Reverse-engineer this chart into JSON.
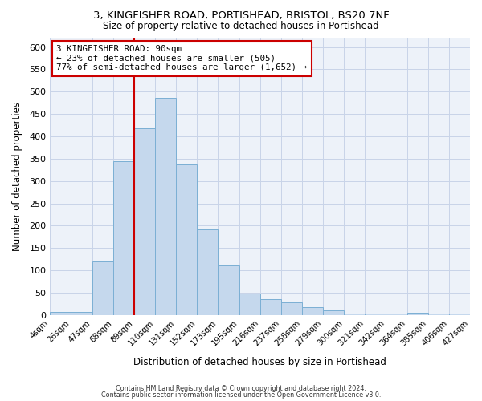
{
  "title1": "3, KINGFISHER ROAD, PORTISHEAD, BRISTOL, BS20 7NF",
  "title2": "Size of property relative to detached houses in Portishead",
  "xlabel": "Distribution of detached houses by size in Portishead",
  "ylabel": "Number of detached properties",
  "bin_labels": [
    "4sqm",
    "26sqm",
    "47sqm",
    "68sqm",
    "89sqm",
    "110sqm",
    "131sqm",
    "152sqm",
    "173sqm",
    "195sqm",
    "216sqm",
    "237sqm",
    "258sqm",
    "279sqm",
    "300sqm",
    "321sqm",
    "342sqm",
    "364sqm",
    "385sqm",
    "406sqm",
    "427sqm"
  ],
  "bar_heights": [
    7,
    7,
    120,
    345,
    418,
    487,
    338,
    192,
    112,
    48,
    35,
    28,
    18,
    10,
    3,
    3,
    3,
    5,
    3,
    3
  ],
  "bar_color": "#c5d8ed",
  "bar_edge_color": "#7bafd4",
  "bg_color": "#edf2f9",
  "grid_color": "#c8d4e8",
  "vline_color": "#cc0000",
  "vline_x_index": 4,
  "annotation_title": "3 KINGFISHER ROAD: 90sqm",
  "annotation_line1": "← 23% of detached houses are smaller (505)",
  "annotation_line2": "77% of semi-detached houses are larger (1,652) →",
  "annotation_box_edge": "#cc0000",
  "ylim": [
    0,
    620
  ],
  "yticks": [
    0,
    50,
    100,
    150,
    200,
    250,
    300,
    350,
    400,
    450,
    500,
    550,
    600
  ],
  "footer1": "Contains HM Land Registry data © Crown copyright and database right 2024.",
  "footer2": "Contains public sector information licensed under the Open Government Licence v3.0."
}
